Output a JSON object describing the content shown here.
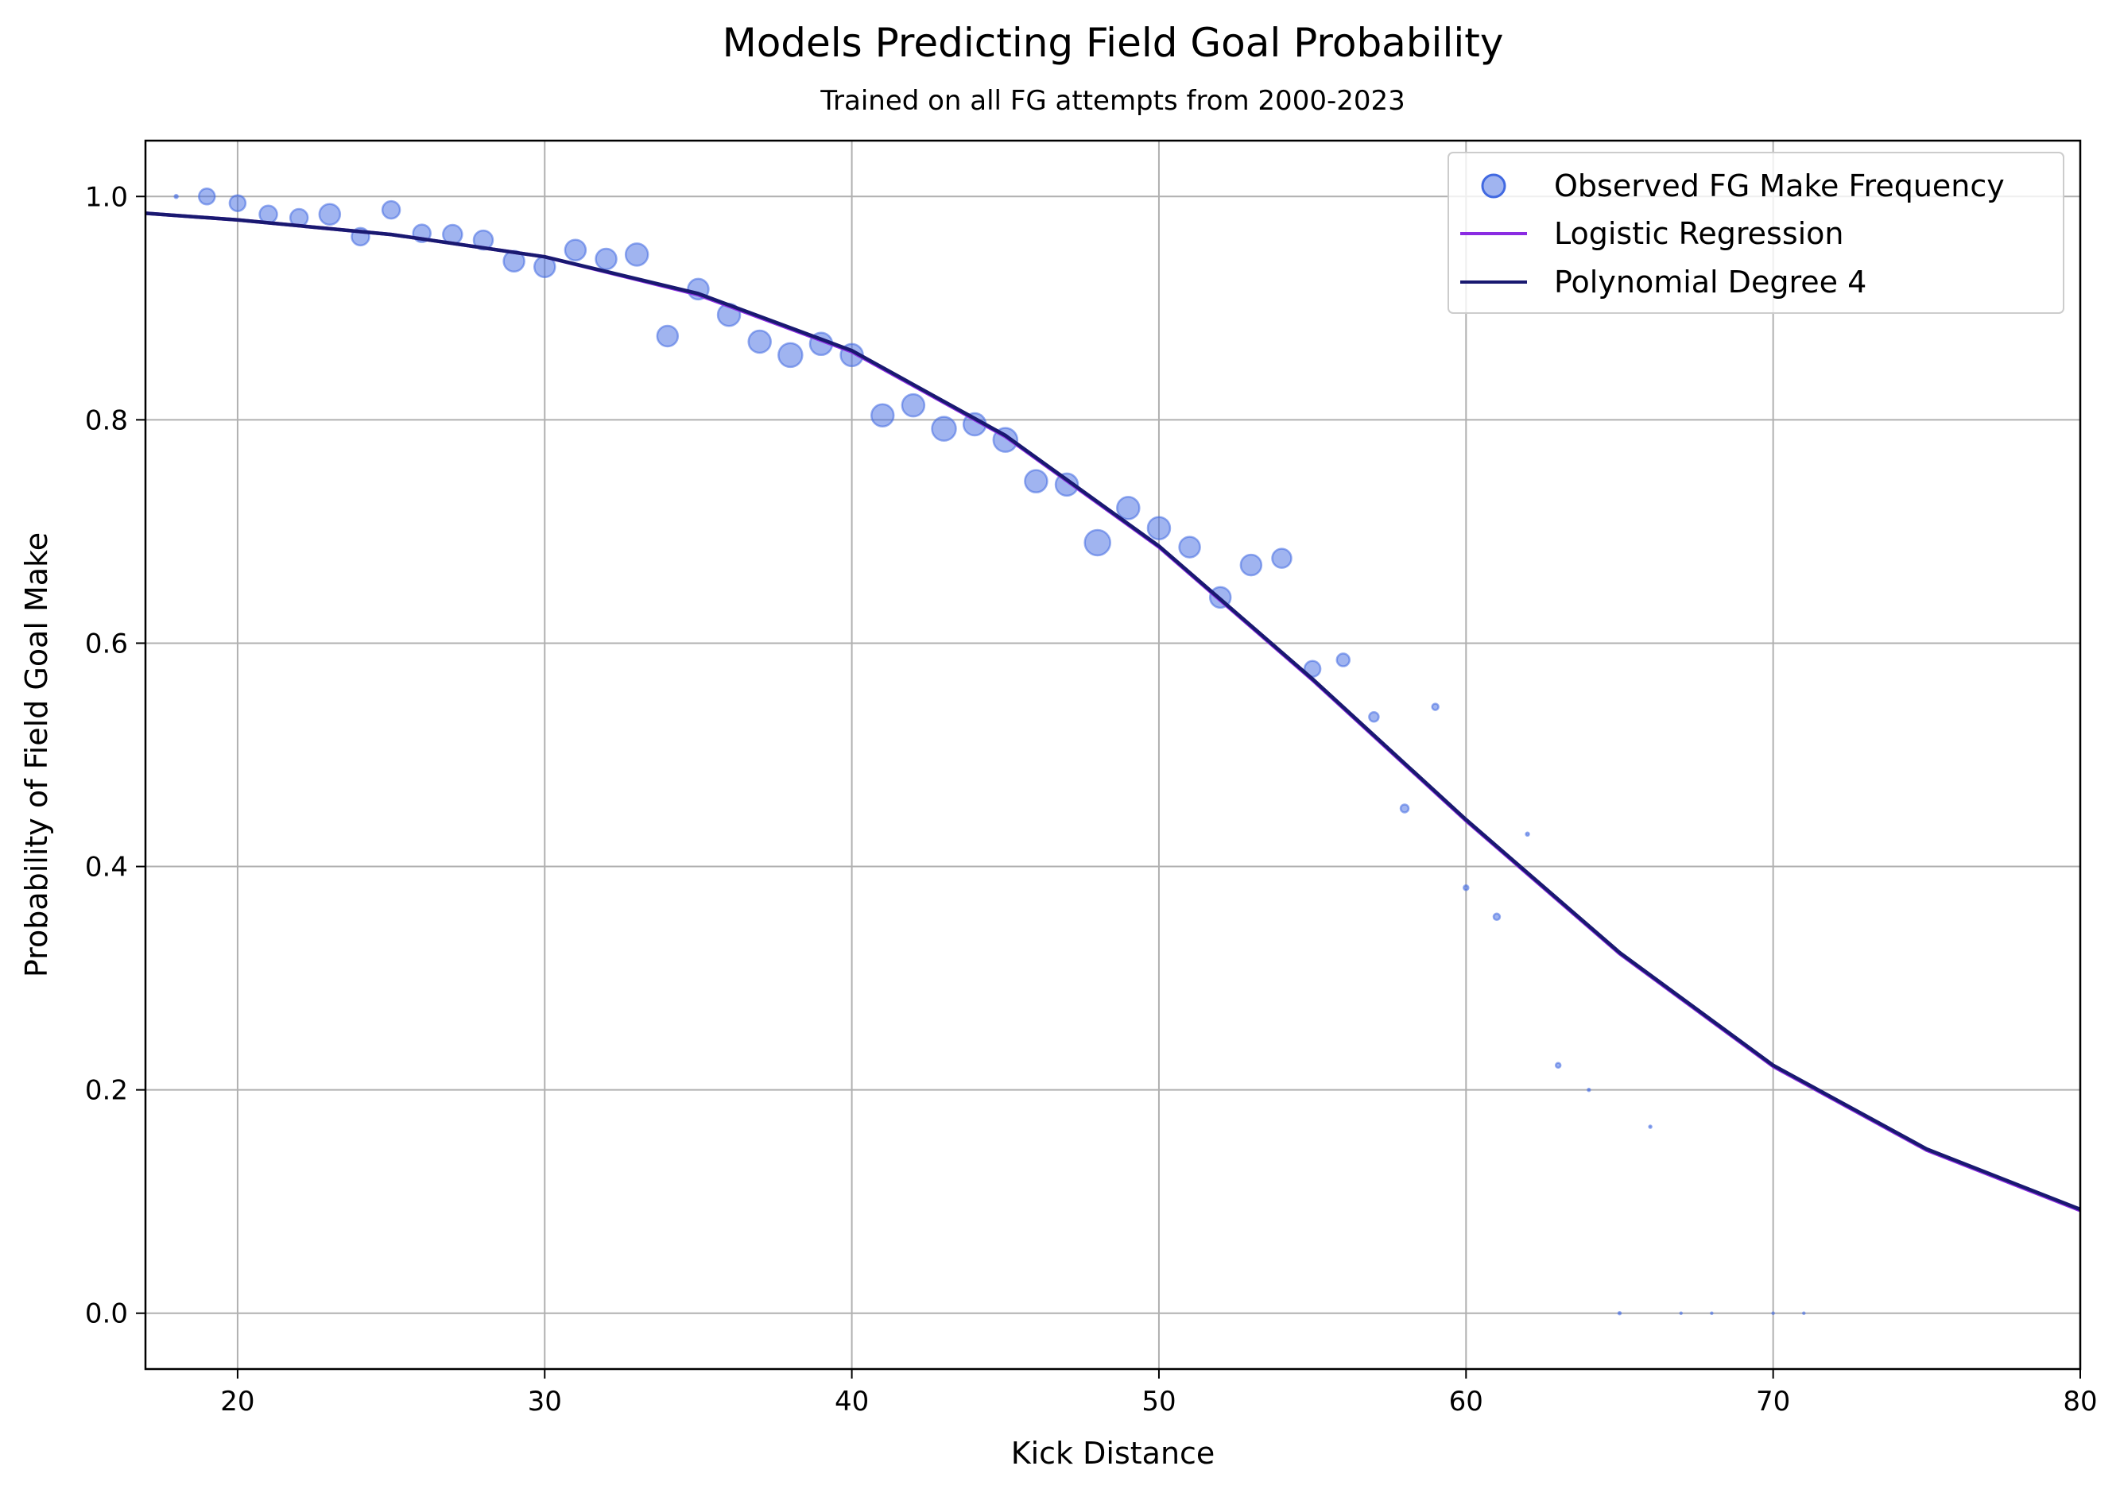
{
  "chart_data": {
    "type": "scatter",
    "title": "Models Predicting Field Goal Probability",
    "subtitle": "Trained on all FG attempts from 2000-2023",
    "xlabel": "Kick Distance",
    "ylabel": "Probability of Field Goal Make",
    "xlim": [
      17,
      80
    ],
    "ylim": [
      -0.05,
      1.05
    ],
    "xticks": [
      20,
      30,
      40,
      50,
      60,
      70,
      80
    ],
    "yticks": [
      0.0,
      0.2,
      0.4,
      0.6,
      0.8,
      1.0
    ],
    "xtick_labels": [
      "20",
      "30",
      "40",
      "50",
      "60",
      "70",
      "80"
    ],
    "ytick_labels": [
      "0.0",
      "0.2",
      "0.4",
      "0.6",
      "0.8",
      "1.0"
    ],
    "grid": true,
    "legend_position": "top-right",
    "series": [
      {
        "name": "Observed FG Make Frequency",
        "kind": "scatter",
        "color": "#4169e1",
        "x": [
          18,
          19,
          20,
          21,
          22,
          23,
          24,
          25,
          26,
          27,
          28,
          29,
          30,
          31,
          32,
          33,
          34,
          35,
          36,
          37,
          38,
          39,
          40,
          41,
          42,
          43,
          44,
          45,
          46,
          47,
          48,
          49,
          50,
          51,
          52,
          53,
          54,
          55,
          56,
          57,
          58,
          59,
          60,
          61,
          62,
          63,
          64,
          65,
          66,
          67,
          68,
          70,
          71
        ],
        "y": [
          1.0,
          1.0,
          0.994,
          0.984,
          0.981,
          0.984,
          0.964,
          0.988,
          0.967,
          0.966,
          0.961,
          0.942,
          0.937,
          0.952,
          0.944,
          0.948,
          0.875,
          0.917,
          0.894,
          0.87,
          0.858,
          0.868,
          0.858,
          0.804,
          0.813,
          0.792,
          0.796,
          0.782,
          0.745,
          0.742,
          0.69,
          0.721,
          0.703,
          0.686,
          0.641,
          0.67,
          0.676,
          0.577,
          0.585,
          0.534,
          0.452,
          0.543,
          0.381,
          0.355,
          0.429,
          0.222,
          0.2,
          0.0,
          0.167,
          0.0,
          0.0,
          0.0,
          0.0
        ],
        "sizes": [
          2,
          10,
          10,
          11,
          11,
          13,
          11,
          11,
          11,
          12,
          12,
          13,
          13,
          13,
          13,
          14,
          13,
          13,
          14,
          14,
          15,
          14,
          14,
          14,
          14,
          15,
          14,
          15,
          14,
          14,
          16,
          14,
          14,
          13,
          13,
          13,
          12,
          10,
          8,
          6,
          5,
          4,
          3,
          4,
          2,
          3,
          1.5,
          1.5,
          1.5,
          1,
          1,
          1,
          1
        ]
      },
      {
        "name": "Logistic Regression",
        "kind": "line",
        "color": "#8a2be2",
        "x": [
          17,
          20,
          25,
          30,
          35,
          40,
          45,
          50,
          55,
          60,
          65,
          70,
          75,
          80
        ],
        "y": [
          0.985,
          0.979,
          0.966,
          0.946,
          0.912,
          0.861,
          0.785,
          0.686,
          0.567,
          0.441,
          0.322,
          0.221,
          0.146,
          0.092
        ]
      },
      {
        "name": "Polynomial Degree 4",
        "kind": "line",
        "color": "#191970",
        "x": [
          17,
          20,
          25,
          30,
          35,
          40,
          45,
          50,
          55,
          60,
          65,
          70,
          75,
          80
        ],
        "y": [
          0.985,
          0.979,
          0.966,
          0.946,
          0.913,
          0.862,
          0.786,
          0.687,
          0.568,
          0.442,
          0.323,
          0.222,
          0.147,
          0.093
        ]
      }
    ]
  }
}
